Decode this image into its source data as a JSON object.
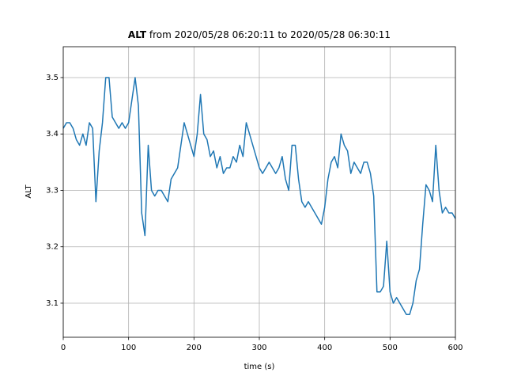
{
  "chart_data": {
    "type": "line",
    "title": {
      "bold": "ALT",
      "text": "from 2020/05/28 06:20:11 to 2020/05/28 06:30:11"
    },
    "xlabel": "time (s)",
    "ylabel": "ALT",
    "xlim": [
      0,
      600
    ],
    "ylim": [
      3.0396,
      3.5547
    ],
    "xticks": [
      0,
      100,
      200,
      300,
      400,
      500,
      600
    ],
    "yticks": [
      3.1,
      3.2,
      3.3,
      3.4,
      3.5
    ],
    "grid": true,
    "x": [
      0,
      5,
      10,
      15,
      20,
      25,
      30,
      35,
      40,
      45,
      50,
      55,
      60,
      65,
      70,
      75,
      80,
      85,
      90,
      95,
      100,
      105,
      110,
      115,
      120,
      125,
      130,
      135,
      140,
      145,
      150,
      155,
      160,
      165,
      170,
      175,
      180,
      185,
      190,
      195,
      200,
      205,
      210,
      215,
      220,
      225,
      230,
      235,
      240,
      245,
      250,
      255,
      260,
      265,
      270,
      275,
      280,
      285,
      290,
      295,
      300,
      305,
      310,
      315,
      320,
      325,
      330,
      335,
      340,
      345,
      350,
      355,
      360,
      365,
      370,
      375,
      380,
      385,
      390,
      395,
      400,
      405,
      410,
      415,
      420,
      425,
      430,
      435,
      440,
      445,
      450,
      455,
      460,
      465,
      470,
      475,
      480,
      485,
      490,
      495,
      500,
      505,
      510,
      515,
      520,
      525,
      530,
      535,
      540,
      545,
      550,
      555,
      560,
      565,
      570,
      575,
      580,
      585,
      590,
      595,
      600
    ],
    "series": [
      {
        "name": "ALT",
        "color": "#1f77b4",
        "values": [
          3.41,
          3.42,
          3.42,
          3.41,
          3.39,
          3.38,
          3.4,
          3.38,
          3.42,
          3.41,
          3.28,
          3.37,
          3.42,
          3.5,
          3.5,
          3.43,
          3.42,
          3.41,
          3.42,
          3.41,
          3.42,
          3.46,
          3.5,
          3.45,
          3.26,
          3.22,
          3.38,
          3.3,
          3.29,
          3.3,
          3.3,
          3.29,
          3.28,
          3.32,
          3.33,
          3.34,
          3.38,
          3.42,
          3.4,
          3.38,
          3.36,
          3.4,
          3.47,
          3.4,
          3.39,
          3.36,
          3.37,
          3.34,
          3.36,
          3.33,
          3.34,
          3.34,
          3.36,
          3.35,
          3.38,
          3.36,
          3.42,
          3.4,
          3.38,
          3.36,
          3.34,
          3.33,
          3.34,
          3.35,
          3.34,
          3.33,
          3.34,
          3.36,
          3.32,
          3.3,
          3.38,
          3.38,
          3.32,
          3.28,
          3.27,
          3.28,
          3.27,
          3.26,
          3.25,
          3.24,
          3.27,
          3.32,
          3.35,
          3.36,
          3.34,
          3.4,
          3.38,
          3.37,
          3.33,
          3.35,
          3.34,
          3.33,
          3.35,
          3.35,
          3.33,
          3.29,
          3.12,
          3.12,
          3.13,
          3.21,
          3.12,
          3.1,
          3.11,
          3.1,
          3.09,
          3.08,
          3.08,
          3.1,
          3.14,
          3.16,
          3.24,
          3.31,
          3.3,
          3.28,
          3.38,
          3.3,
          3.26,
          3.27,
          3.26,
          3.26,
          3.25
        ]
      }
    ]
  }
}
